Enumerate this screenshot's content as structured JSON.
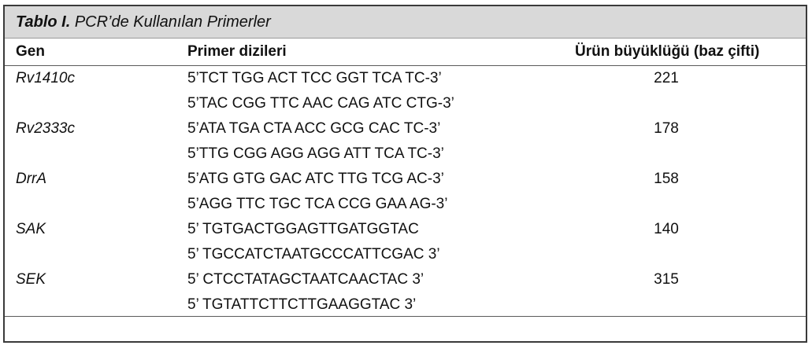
{
  "table": {
    "title_bold": "Tablo I.",
    "title_rest": " PCR’de Kullanılan Primerler",
    "headers": {
      "gen": "Gen",
      "primer": "Primer dizileri",
      "size": "Ürün büyüklüğü (baz çifti)"
    },
    "rows": [
      {
        "gen": "Rv1410c",
        "primer": "5’TCT TGG ACT TCC GGT TCA TC-3’",
        "size": "221"
      },
      {
        "gen": "",
        "primer": "5’TAC CGG TTC AAC CAG ATC CTG-3’",
        "size": ""
      },
      {
        "gen": "Rv2333c",
        "primer": "5’ATA TGA CTA ACC GCG CAC TC-3’",
        "size": "178"
      },
      {
        "gen": "",
        "primer": "5’TTG CGG AGG AGG ATT TCA TC-3’",
        "size": ""
      },
      {
        "gen": "DrrA",
        "primer": "5’ATG GTG GAC ATC TTG TCG AC-3’",
        "size": "158"
      },
      {
        "gen": "",
        "primer": "5’AGG TTC TGC TCA CCG GAA AG-3’",
        "size": ""
      },
      {
        "gen": "SAK",
        "primer": "5’ TGTGACTGGAGTTGATGGTAC",
        "size": "140"
      },
      {
        "gen": "",
        "primer": "5’ TGCCATCTAATGCCCATTCGAC 3’",
        "size": ""
      },
      {
        "gen": "SEK",
        "primer": "5’ CTCCTATAGCTAATCAACTAC 3’",
        "size": "315"
      },
      {
        "gen": "",
        "primer": "5’ TGTATTCTTCTTGAAGGTAC 3’",
        "size": ""
      }
    ]
  }
}
